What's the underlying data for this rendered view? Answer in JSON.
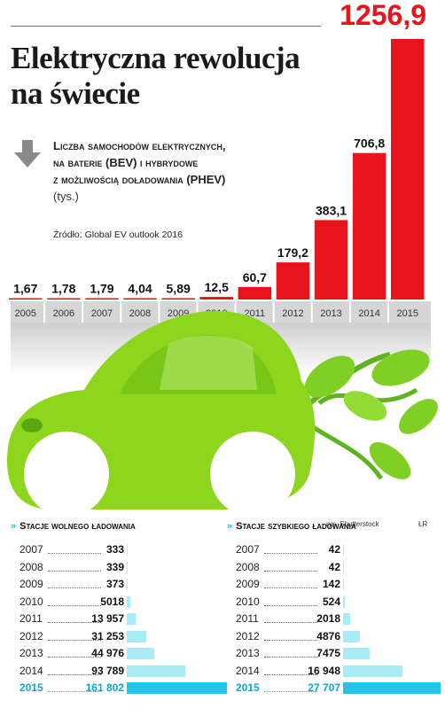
{
  "header": {
    "title_line1": "Elektryczna rewolucja",
    "title_line2": "na świecie",
    "subtitle_line1": "Liczba samochodów elektrycznych,",
    "subtitle_line2": "na baterie (BEV) i hybrydowe",
    "subtitle_line3": "z możliwością doładowania (PHEV)",
    "unit": "(tys.)",
    "source": "Źródło: Global EV outlook 2016"
  },
  "credits": {
    "illustration": "rys. Shutterstock",
    "author": "ŁR"
  },
  "colors": {
    "bar_red": "#e8141b",
    "cyan_bar": "#a8ecf7",
    "cyan_accent": "#22c4eb",
    "car_green": "#8ed61e"
  },
  "chart_data": [
    {
      "type": "bar",
      "categories": [
        "2005",
        "2006",
        "2007",
        "2008",
        "2009",
        "2010",
        "2011",
        "2012",
        "2013",
        "2014",
        "2015"
      ],
      "values": [
        1.67,
        1.78,
        1.79,
        4.04,
        5.89,
        12.5,
        60.7,
        179.2,
        383.1,
        706.8,
        1256.9
      ],
      "labels": [
        "1,67",
        "1,78",
        "1,79",
        "4,04",
        "5,89",
        "12,5",
        "60,7",
        "179,2",
        "383,1",
        "706,8",
        "1256,9"
      ],
      "title": "Liczba samochodów elektrycznych, na baterie (BEV) i hybrydowe z możliwością doładowania (PHEV)",
      "ylabel": "(tys.)",
      "ylim": [
        0,
        1256.9
      ]
    },
    {
      "type": "bar",
      "title": "Stacje wolnego ładowania",
      "categories": [
        "2007",
        "2008",
        "2009",
        "2010",
        "2011",
        "2012",
        "2013",
        "2014",
        "2015"
      ],
      "values": [
        333,
        339,
        373,
        5018,
        13957,
        31253,
        44976,
        93789,
        161802
      ],
      "labels": [
        "333",
        "339",
        "373",
        "5018",
        "13 957",
        "31 253",
        "44 976",
        "93 789",
        "161 802"
      ]
    },
    {
      "type": "bar",
      "title": "Stacje szybkiego ładowania",
      "categories": [
        "2007",
        "2008",
        "2009",
        "2010",
        "2011",
        "2012",
        "2013",
        "2014",
        "2015"
      ],
      "values": [
        42,
        42,
        142,
        524,
        2018,
        4876,
        7475,
        16948,
        27707
      ],
      "labels": [
        "42",
        "42",
        "142",
        "524",
        "2018",
        "4876",
        "7475",
        "16 948",
        "27 707"
      ]
    }
  ]
}
